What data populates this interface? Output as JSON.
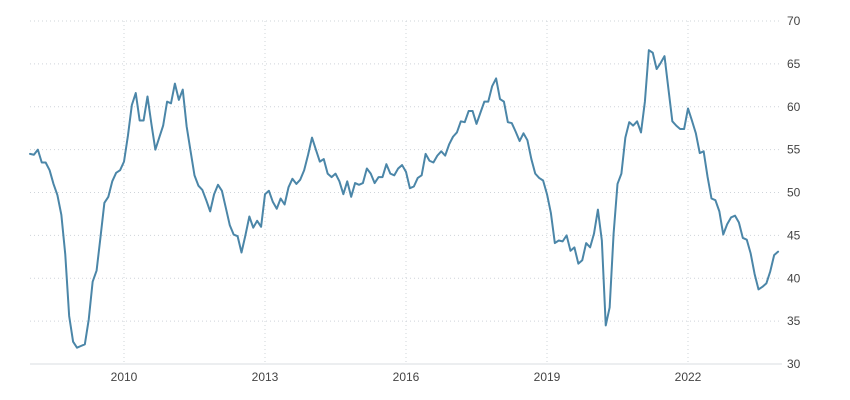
{
  "chart_data": {
    "type": "line",
    "title": "",
    "xlabel": "",
    "ylabel": "",
    "ylim": [
      30,
      70
    ],
    "xlim": [
      2008.0,
      2024.0
    ],
    "y_ticks": [
      "30",
      "35",
      "40",
      "45",
      "50",
      "55",
      "60",
      "65",
      "70"
    ],
    "x_ticks": [
      {
        "label": "2010",
        "value": 2010.0
      },
      {
        "label": "2013",
        "value": 2013.0
      },
      {
        "label": "2016",
        "value": 2016.0
      },
      {
        "label": "2019",
        "value": 2019.0
      },
      {
        "label": "2022",
        "value": 2022.0
      }
    ],
    "grid": true,
    "legend": "none",
    "color": "#4b86a8",
    "series": [
      {
        "x": [
          2008.0,
          2008.083,
          2008.167,
          2008.25,
          2008.333,
          2008.417,
          2008.5,
          2008.583,
          2008.667,
          2008.75,
          2008.833,
          2008.917,
          2009.0,
          2009.083,
          2009.167,
          2009.25,
          2009.333,
          2009.417,
          2009.5,
          2009.583,
          2009.667,
          2009.75,
          2009.833,
          2009.917,
          2010.0,
          2010.083,
          2010.167,
          2010.25,
          2010.333,
          2010.417,
          2010.5,
          2010.583,
          2010.667,
          2010.75,
          2010.833,
          2010.917,
          2011.0,
          2011.083,
          2011.167,
          2011.25,
          2011.333,
          2011.417,
          2011.5,
          2011.583,
          2011.667,
          2011.75,
          2011.833,
          2011.917,
          2012.0,
          2012.083,
          2012.167,
          2012.25,
          2012.333,
          2012.417,
          2012.5,
          2012.583,
          2012.667,
          2012.75,
          2012.833,
          2012.917,
          2013.0,
          2013.083,
          2013.167,
          2013.25,
          2013.333,
          2013.417,
          2013.5,
          2013.583,
          2013.667,
          2013.75,
          2013.833,
          2013.917,
          2014.0,
          2014.083,
          2014.167,
          2014.25,
          2014.333,
          2014.417,
          2014.5,
          2014.583,
          2014.667,
          2014.75,
          2014.833,
          2014.917,
          2015.0,
          2015.083,
          2015.167,
          2015.25,
          2015.333,
          2015.417,
          2015.5,
          2015.583,
          2015.667,
          2015.75,
          2015.833,
          2015.917,
          2016.0,
          2016.083,
          2016.167,
          2016.25,
          2016.333,
          2016.417,
          2016.5,
          2016.583,
          2016.667,
          2016.75,
          2016.833,
          2016.917,
          2017.0,
          2017.083,
          2017.167,
          2017.25,
          2017.333,
          2017.417,
          2017.5,
          2017.583,
          2017.667,
          2017.75,
          2017.833,
          2017.917,
          2018.0,
          2018.083,
          2018.167,
          2018.25,
          2018.333,
          2018.417,
          2018.5,
          2018.583,
          2018.667,
          2018.75,
          2018.833,
          2018.917,
          2019.0,
          2019.083,
          2019.167,
          2019.25,
          2019.333,
          2019.417,
          2019.5,
          2019.583,
          2019.667,
          2019.75,
          2019.833,
          2019.917,
          2020.0,
          2020.083,
          2020.167,
          2020.25,
          2020.333,
          2020.417,
          2020.5,
          2020.583,
          2020.667,
          2020.75,
          2020.833,
          2020.917,
          2021.0,
          2021.083,
          2021.167,
          2021.25,
          2021.333,
          2021.417,
          2021.5,
          2021.583,
          2021.667,
          2021.75,
          2021.833,
          2021.917,
          2022.0,
          2022.083,
          2022.167,
          2022.25,
          2022.333,
          2022.417,
          2022.5,
          2022.583,
          2022.667,
          2022.75,
          2022.833,
          2022.917,
          2023.0,
          2023.083,
          2023.167,
          2023.25,
          2023.333,
          2023.417,
          2023.5,
          2023.583,
          2023.667,
          2023.75,
          2023.833,
          2023.917
        ],
        "y": [
          54.5,
          54.4,
          55.0,
          53.5,
          53.5,
          52.6,
          51.0,
          49.7,
          47.4,
          42.8,
          35.6,
          32.6,
          31.9,
          32.1,
          32.3,
          35.2,
          39.6,
          40.9,
          44.8,
          48.8,
          49.5,
          51.3,
          52.3,
          52.6,
          53.6,
          56.6,
          60.2,
          61.6,
          58.4,
          58.4,
          61.2,
          58.0,
          55.0,
          56.4,
          57.8,
          60.6,
          60.4,
          62.7,
          60.8,
          62.0,
          57.7,
          54.8,
          52.0,
          50.8,
          50.3,
          49.1,
          47.8,
          49.8,
          50.9,
          50.2,
          48.2,
          46.2,
          45.1,
          44.9,
          43.0,
          45.0,
          47.2,
          45.9,
          46.7,
          46.0,
          49.8,
          50.2,
          48.9,
          48.1,
          49.3,
          48.6,
          50.6,
          51.6,
          51.0,
          51.5,
          52.6,
          54.4,
          56.4,
          55.0,
          53.6,
          53.9,
          52.2,
          51.8,
          52.2,
          51.3,
          49.8,
          51.3,
          49.5,
          51.1,
          50.9,
          51.1,
          52.8,
          52.2,
          51.1,
          51.8,
          51.8,
          53.3,
          52.2,
          52.0,
          52.8,
          53.2,
          52.4,
          50.5,
          50.7,
          51.7,
          52.0,
          54.5,
          53.7,
          53.5,
          54.3,
          54.8,
          54.3,
          55.6,
          56.5,
          57.0,
          58.3,
          58.2,
          59.5,
          59.5,
          58.0,
          59.3,
          60.6,
          60.6,
          62.4,
          63.3,
          60.9,
          60.6,
          58.2,
          58.1,
          57.1,
          56.0,
          56.9,
          56.1,
          53.9,
          52.2,
          51.7,
          51.4,
          49.8,
          47.6,
          44.1,
          44.4,
          44.3,
          45.0,
          43.2,
          43.6,
          41.7,
          42.1,
          44.1,
          43.6,
          45.2,
          48.0,
          44.4,
          34.5,
          36.6,
          45.2,
          51.0,
          52.2,
          56.4,
          58.2,
          57.8,
          58.3,
          57.0,
          60.6,
          66.6,
          66.3,
          64.4,
          65.1,
          65.9,
          62.1,
          58.3,
          57.8,
          57.4,
          57.4,
          59.8,
          58.4,
          56.9,
          54.6,
          54.8,
          51.8,
          49.3,
          49.1,
          47.8,
          45.1,
          46.3,
          47.1,
          47.3,
          46.5,
          44.7,
          44.5,
          42.9,
          40.5,
          38.7,
          39.0,
          39.4,
          40.8,
          42.7,
          43.1
        ]
      }
    ]
  }
}
